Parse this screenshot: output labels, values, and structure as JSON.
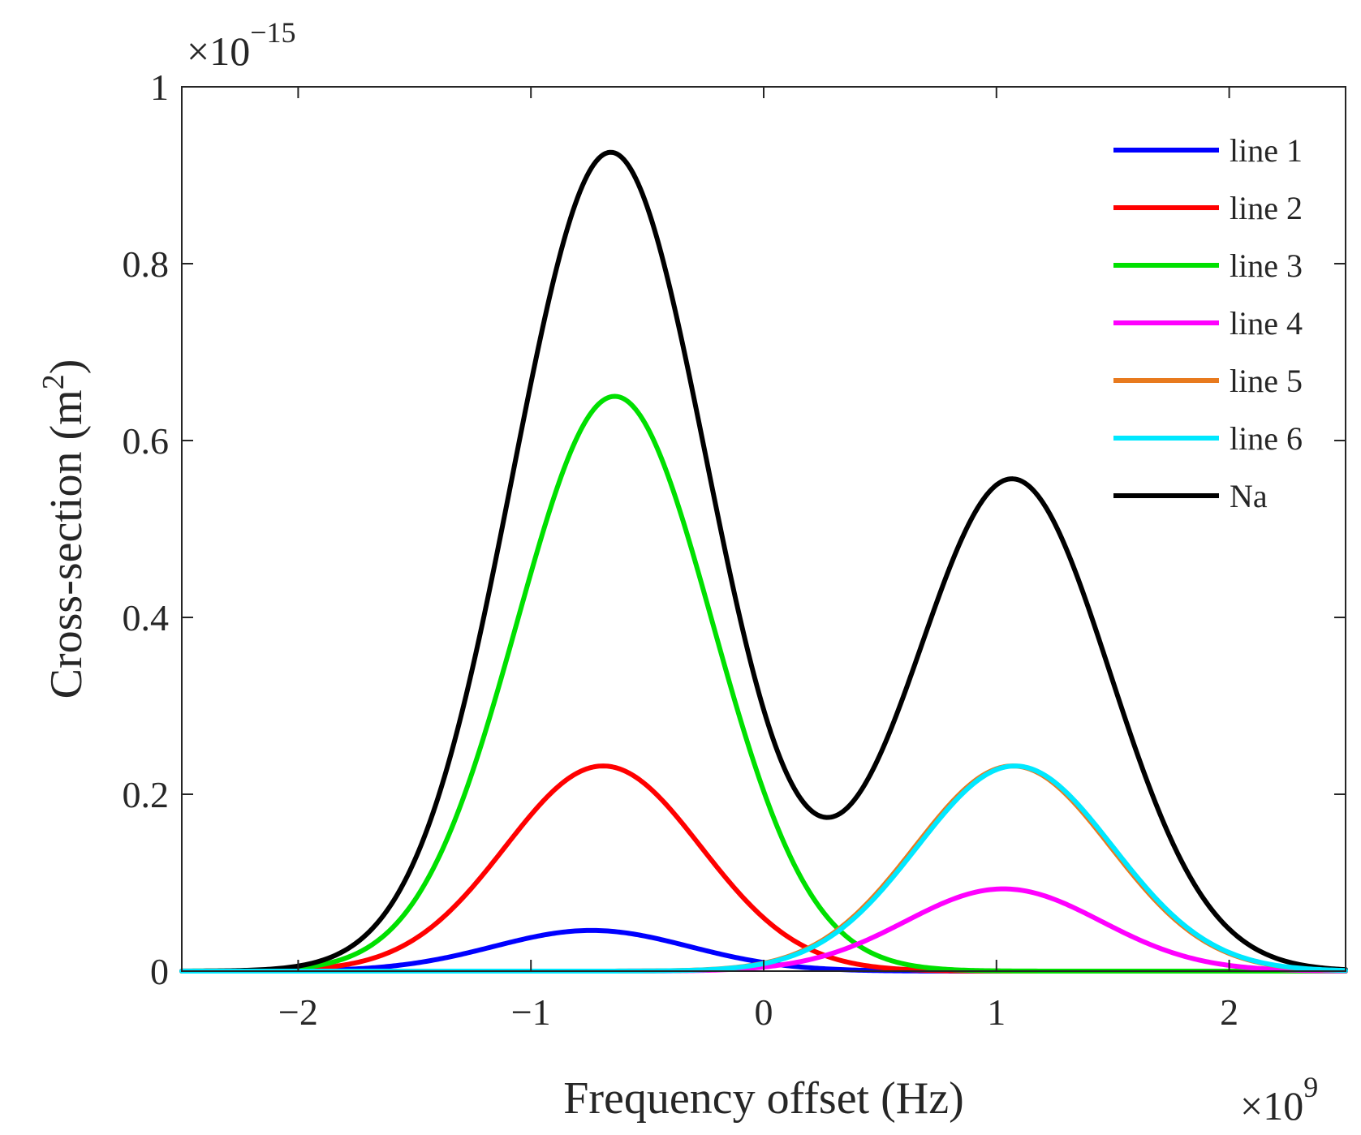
{
  "chart_data": {
    "type": "line",
    "xlabel": "Frequency offset (Hz)",
    "ylabel_text": "Cross-section (m",
    "ylabel_sup": "2",
    "ylabel_close": ")",
    "x_exponent": {
      "base": "×10",
      "power": "9"
    },
    "y_exponent": {
      "base": "×10",
      "power": "−15"
    },
    "xlim": [
      -2.5,
      2.5
    ],
    "ylim": [
      0,
      1
    ],
    "xticks": [
      {
        "value": -2,
        "label": "−2"
      },
      {
        "value": -1,
        "label": "−1"
      },
      {
        "value": 0,
        "label": "0"
      },
      {
        "value": 1,
        "label": "1"
      },
      {
        "value": 2,
        "label": "2"
      }
    ],
    "yticks": [
      {
        "value": 0,
        "label": "0"
      },
      {
        "value": 0.2,
        "label": "0.2"
      },
      {
        "value": 0.4,
        "label": "0.4"
      },
      {
        "value": 0.6,
        "label": "0.6"
      },
      {
        "value": 0.8,
        "label": "0.8"
      },
      {
        "value": 1,
        "label": "1"
      }
    ],
    "grid": false,
    "legend_position": "top-right",
    "series": [
      {
        "name": "line 1",
        "color": "#0000ff",
        "type": "gaussian",
        "center": -0.74,
        "amplitude": 0.046,
        "sigma": 0.42
      },
      {
        "name": "line 2",
        "color": "#ff0000",
        "type": "gaussian",
        "center": -0.69,
        "amplitude": 0.232,
        "sigma": 0.42
      },
      {
        "name": "line 3",
        "color": "#00e000",
        "type": "gaussian",
        "center": -0.64,
        "amplitude": 0.65,
        "sigma": 0.42
      },
      {
        "name": "line 4",
        "color": "#ff00ff",
        "type": "gaussian",
        "center": 1.03,
        "amplitude": 0.093,
        "sigma": 0.42
      },
      {
        "name": "line 5",
        "color": "#e87a1e",
        "type": "gaussian",
        "center": 1.07,
        "amplitude": 0.232,
        "sigma": 0.42
      },
      {
        "name": "line 6",
        "color": "#00e8ff",
        "type": "gaussian",
        "center": 1.08,
        "amplitude": 0.232,
        "sigma": 0.42
      },
      {
        "name": "Na",
        "color": "#000000",
        "type": "sum",
        "of": [
          "line 1",
          "line 2",
          "line 3",
          "line 4",
          "line 5",
          "line 6"
        ]
      }
    ]
  }
}
